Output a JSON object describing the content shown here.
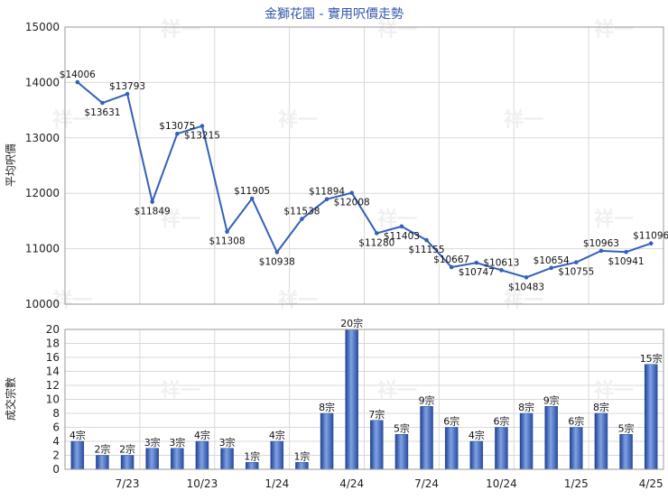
{
  "chart_data": [
    {
      "type": "line",
      "title": "金獅花園 - 實用呎價走勢",
      "xlabel": "",
      "ylabel": "平均呎價",
      "ylim": [
        10000,
        15000
      ],
      "yticks": [
        "10000",
        "11000",
        "12000",
        "13000",
        "14000",
        "15000"
      ],
      "grid": true,
      "color": "#3560b8",
      "series": [
        {
          "values": [
            14006,
            13631,
            13793,
            11849,
            13075,
            13215,
            11308,
            11905,
            10938,
            11538,
            11894,
            12008,
            11280,
            11403,
            11155,
            10667,
            10747,
            10613,
            10483,
            10654,
            10755,
            10963,
            10941,
            11096
          ],
          "labels": [
            "$14006",
            "$13631",
            "$13793",
            "$11849",
            "$13075",
            "$13215",
            "$11308",
            "$11905",
            "$10938",
            "$11538",
            "$11894",
            "$12008",
            "$11280",
            "$11403",
            "$11155",
            "$10667",
            "$10747",
            "$10613",
            "$10483",
            "$10654",
            "$10755",
            "$10963",
            "$10941",
            "$11096"
          ]
        }
      ]
    },
    {
      "type": "bar",
      "xlabel": "",
      "ylabel": "成交宗數",
      "ylim": [
        0,
        20
      ],
      "yticks": [
        "0",
        "2",
        "4",
        "6",
        "8",
        "10",
        "12",
        "14",
        "16",
        "18",
        "20"
      ],
      "grid": true,
      "color": "#3560b8",
      "series": [
        {
          "values": [
            4,
            2,
            2,
            3,
            3,
            4,
            3,
            1,
            4,
            1,
            8,
            20,
            7,
            5,
            9,
            6,
            4,
            6,
            8,
            9,
            6,
            8,
            5,
            15
          ],
          "labels": [
            "4宗",
            "2宗",
            "2宗",
            "3宗",
            "3宗",
            "4宗",
            "3宗",
            "1宗",
            "4宗",
            "1宗",
            "8宗",
            "20宗",
            "7宗",
            "5宗",
            "9宗",
            "6宗",
            "4宗",
            "6宗",
            "8宗",
            "9宗",
            "6宗",
            "8宗",
            "5宗",
            "15宗"
          ]
        }
      ],
      "xticks": [
        {
          "label": "7/23",
          "index": 2
        },
        {
          "label": "10/23",
          "index": 5
        },
        {
          "label": "1/24",
          "index": 8
        },
        {
          "label": "4/24",
          "index": 11
        },
        {
          "label": "7/24",
          "index": 14
        },
        {
          "label": "10/24",
          "index": 17
        },
        {
          "label": "1/25",
          "index": 20
        },
        {
          "label": "4/25",
          "index": 23
        }
      ]
    }
  ],
  "watermark": "祥一"
}
